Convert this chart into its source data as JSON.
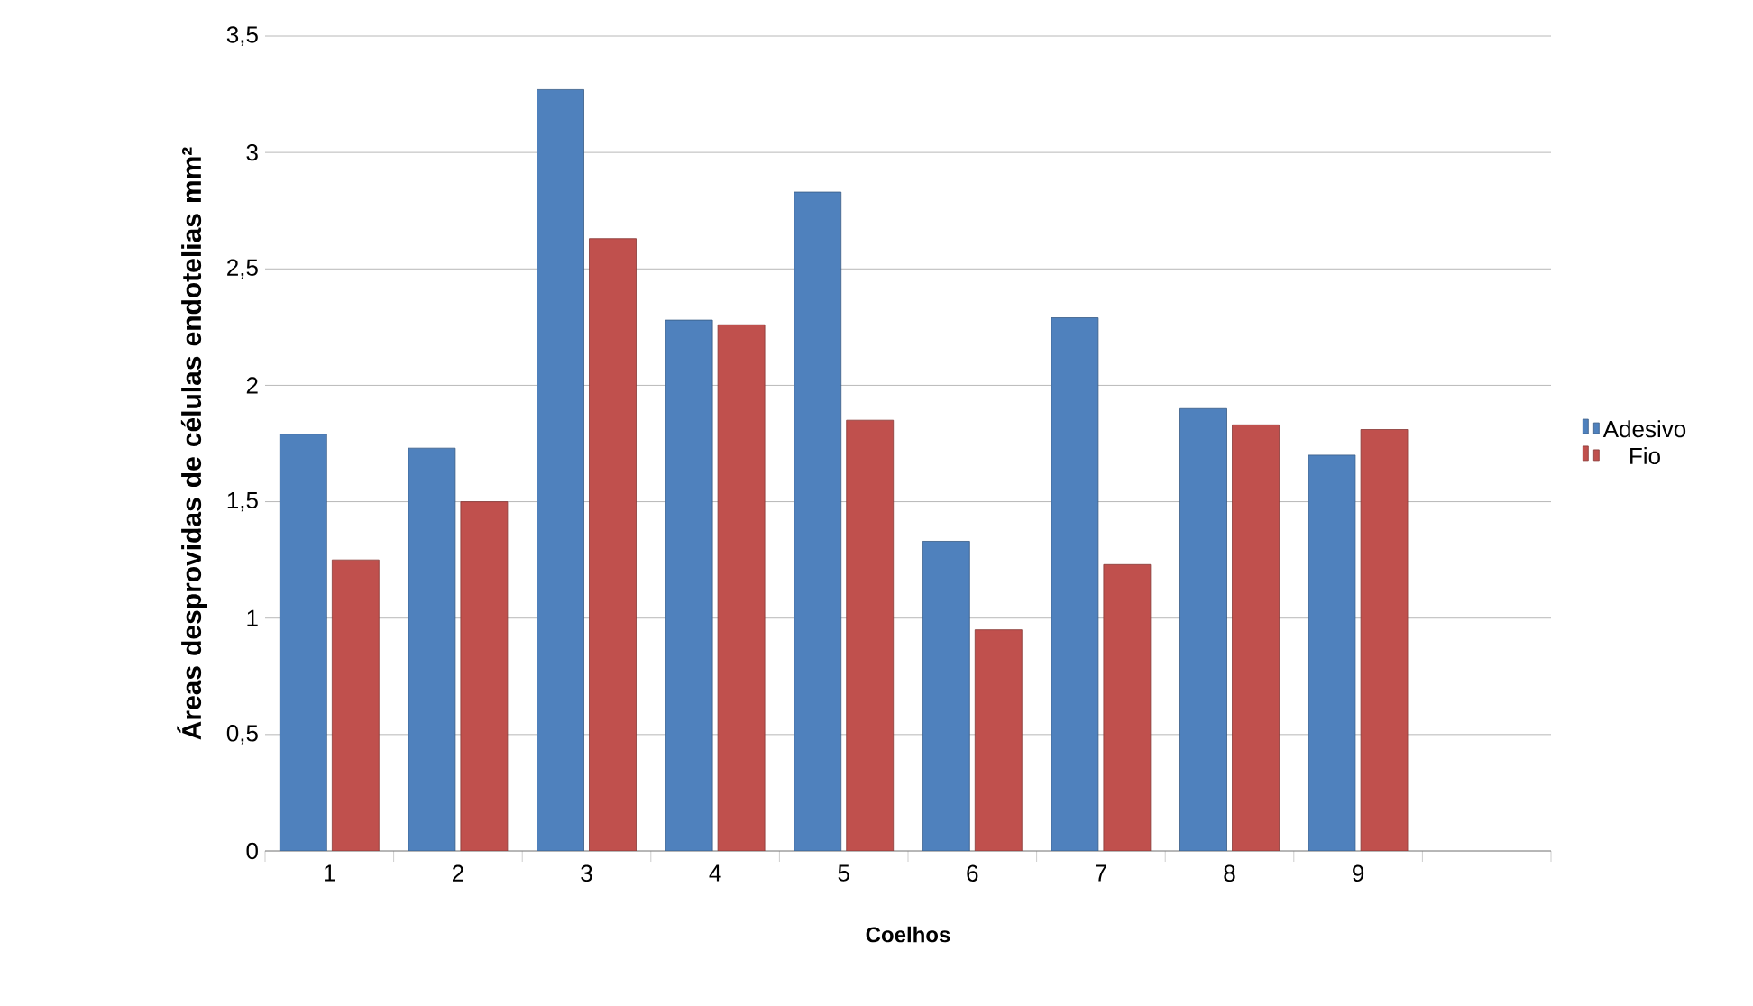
{
  "chart_data": {
    "type": "bar",
    "xlabel": "Coelhos",
    "ylabel": "Áreas desprovidas de células endotelias mm²",
    "categories": [
      "1",
      "2",
      "3",
      "4",
      "5",
      "6",
      "7",
      "8",
      "9",
      null
    ],
    "series": [
      {
        "name": "Adesivo",
        "color": "#4f81bd",
        "values": [
          1.79,
          1.73,
          3.27,
          2.28,
          2.83,
          1.33,
          2.29,
          1.9,
          1.7,
          null
        ]
      },
      {
        "name": "Fio",
        "color": "#c0504d",
        "values": [
          1.25,
          1.5,
          2.63,
          2.26,
          1.85,
          0.95,
          1.23,
          1.83,
          1.81,
          null
        ]
      }
    ],
    "ylim": [
      0,
      3.5
    ],
    "yticks": [
      {
        "value": 0,
        "label": "0"
      },
      {
        "value": 0.5,
        "label": "0,5"
      },
      {
        "value": 1,
        "label": "1"
      },
      {
        "value": 1.5,
        "label": "1,5"
      },
      {
        "value": 2,
        "label": "2"
      },
      {
        "value": 2.5,
        "label": "2,5"
      },
      {
        "value": 3,
        "label": "3"
      },
      {
        "value": 3.5,
        "label": "3,5"
      }
    ],
    "grid": "y",
    "legend": "right"
  }
}
